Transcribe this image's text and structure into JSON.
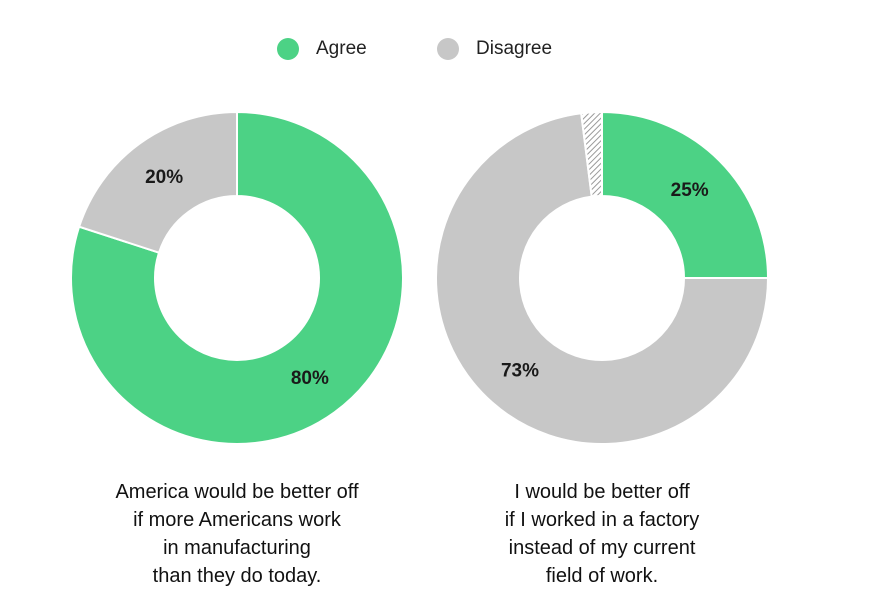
{
  "legend": {
    "items": [
      {
        "label": "Agree",
        "color": "#4CD285"
      },
      {
        "label": "Disagree",
        "color": "#C7C7C7"
      }
    ]
  },
  "chart_data": [
    {
      "type": "pie",
      "donut": true,
      "caption": [
        "America would be better off",
        "if more Americans work",
        "in manufacturing",
        "than they do today."
      ],
      "slices": [
        {
          "name": "Agree",
          "value": 80,
          "label": "80%",
          "color": "#4CD285"
        },
        {
          "name": "Disagree",
          "value": 20,
          "label": "20%",
          "color": "#C7C7C7"
        }
      ]
    },
    {
      "type": "pie",
      "donut": true,
      "caption": [
        "I would be better off",
        "if I worked in a factory",
        "instead of my current",
        "field of work."
      ],
      "slices": [
        {
          "name": "Agree",
          "value": 25,
          "label": "25%",
          "color": "#4CD285"
        },
        {
          "name": "Disagree",
          "value": 73,
          "label": "73%",
          "color": "#C7C7C7"
        },
        {
          "name": "",
          "value": 2,
          "label": "",
          "color": "hatched"
        }
      ]
    }
  ]
}
